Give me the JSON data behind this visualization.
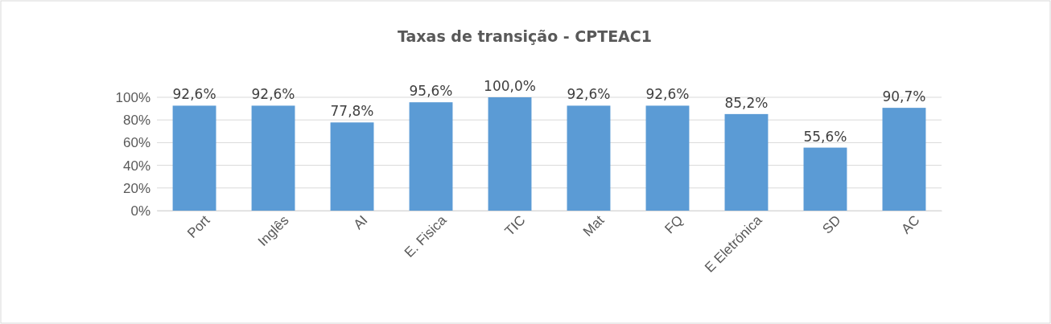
{
  "chart_data": {
    "type": "bar",
    "title": "Taxas de transição - CPTEAC1",
    "categories": [
      "Port",
      "Inglês",
      "AI",
      "E. Fisica",
      "TIC",
      "Mat",
      "FQ",
      "E Eletrónica",
      "SD",
      "AC"
    ],
    "values": [
      92.6,
      92.6,
      77.8,
      95.6,
      100.0,
      92.6,
      92.6,
      85.2,
      55.6,
      90.7
    ],
    "value_labels": [
      "92,6%",
      "92,6%",
      "77,8%",
      "95,6%",
      "100,0%",
      "92,6%",
      "92,6%",
      "85,2%",
      "55,6%",
      "90,7%"
    ],
    "color": "#5b9bd5",
    "ylim": [
      0,
      100
    ],
    "yticks": [
      {
        "value": 0,
        "label": "0%"
      },
      {
        "value": 20,
        "label": "20%"
      },
      {
        "value": 40,
        "label": "40%"
      },
      {
        "value": 60,
        "label": "60%"
      },
      {
        "value": 80,
        "label": "80%"
      },
      {
        "value": 100,
        "label": "100%"
      }
    ],
    "grid": "y"
  }
}
